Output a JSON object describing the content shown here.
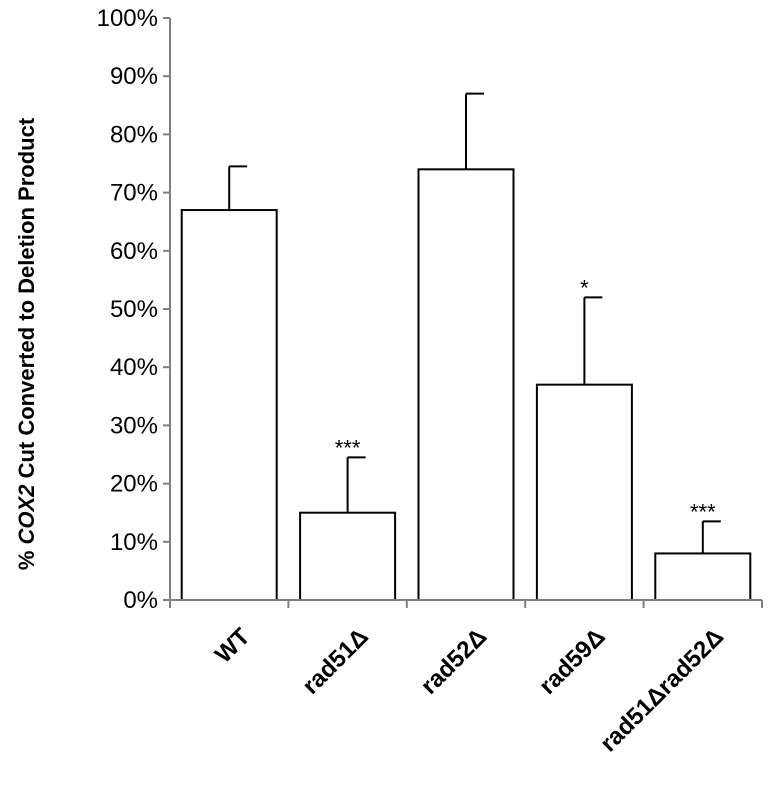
{
  "chart_data": {
    "type": "bar",
    "title": "",
    "xlabel": "",
    "ylabel": {
      "prefix": "% ",
      "italic": "COX2",
      "suffix": " Cut Converted to Deletion Product"
    },
    "categories": [
      "WT",
      "rad51Δ",
      "rad52Δ",
      "rad59Δ",
      "rad51Δrad52Δ"
    ],
    "values": [
      67,
      15,
      74,
      37,
      8
    ],
    "error_upper": [
      7.5,
      9.5,
      13,
      15,
      5.5
    ],
    "significance": [
      "",
      "***",
      "",
      "*",
      "***"
    ],
    "ylim": [
      0,
      100
    ],
    "y_ticks": [
      0,
      10,
      20,
      30,
      40,
      50,
      60,
      70,
      80,
      90,
      100
    ],
    "y_tick_format": "%",
    "grid": false,
    "bar_fill": "#ffffff",
    "bar_stroke": "#000000",
    "axis_color": "#7f7f7f"
  }
}
